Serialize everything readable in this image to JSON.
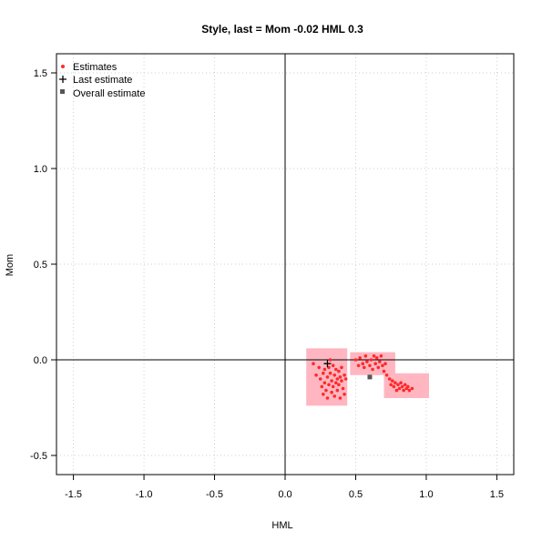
{
  "chart_data": {
    "type": "scatter",
    "title": "Style, last = Mom -0.02 HML 0.3",
    "xlabel": "HML",
    "ylabel": "Mom",
    "xlim": [
      -1.62,
      1.62
    ],
    "ylim": [
      -0.6,
      1.6
    ],
    "x_ticks": [
      -1.5,
      -1.0,
      -0.5,
      0.0,
      0.5,
      1.0,
      1.5
    ],
    "y_ticks": [
      -0.5,
      0.0,
      0.5,
      1.0,
      1.5
    ],
    "x_tick_labels": [
      "-1.5",
      "-1.0",
      "-0.5",
      "0.0",
      "0.5",
      "1.0",
      "1.5"
    ],
    "y_tick_labels": [
      "-0.5",
      "0.0",
      "0.5",
      "1.0",
      "1.5"
    ],
    "grid": true,
    "reference_lines": {
      "x": 0,
      "y": 0
    },
    "legend": {
      "position": "top-left",
      "items": [
        {
          "label": "Estimates",
          "marker": "dot",
          "color": "#ff2a2a"
        },
        {
          "label": "Last estimate",
          "marker": "plus",
          "color": "#000000"
        },
        {
          "label": "Overall estimate",
          "marker": "square",
          "color": "#555555"
        }
      ]
    },
    "colors": {
      "estimate": "#ff2a2a",
      "region": "#ffb6c1",
      "overall": "#555555",
      "last": "#000000"
    },
    "last_estimate": {
      "x": 0.3,
      "y": -0.02
    },
    "overall_estimate": {
      "x": 0.6,
      "y": -0.09
    },
    "regions": [
      [
        [
          0.15,
          0.06
        ],
        [
          0.44,
          0.06
        ],
        [
          0.44,
          -0.24
        ],
        [
          0.15,
          -0.24
        ]
      ],
      [
        [
          0.46,
          0.04
        ],
        [
          0.78,
          0.04
        ],
        [
          0.78,
          -0.08
        ],
        [
          0.46,
          -0.08
        ]
      ],
      [
        [
          0.7,
          -0.07
        ],
        [
          1.02,
          -0.07
        ],
        [
          1.02,
          -0.2
        ],
        [
          0.7,
          -0.2
        ]
      ]
    ],
    "estimates": [
      [
        0.2,
        -0.02
      ],
      [
        0.22,
        -0.08
      ],
      [
        0.24,
        -0.04
      ],
      [
        0.25,
        -0.1
      ],
      [
        0.26,
        -0.14
      ],
      [
        0.27,
        -0.07
      ],
      [
        0.27,
        -0.18
      ],
      [
        0.28,
        -0.05
      ],
      [
        0.28,
        -0.12
      ],
      [
        0.29,
        -0.16
      ],
      [
        0.3,
        -0.09
      ],
      [
        0.3,
        -0.2
      ],
      [
        0.31,
        -0.04
      ],
      [
        0.31,
        -0.13
      ],
      [
        0.32,
        -0.07
      ],
      [
        0.32,
        0.0
      ],
      [
        0.33,
        -0.11
      ],
      [
        0.33,
        -0.17
      ],
      [
        0.34,
        -0.03
      ],
      [
        0.34,
        -0.14
      ],
      [
        0.35,
        -0.08
      ],
      [
        0.35,
        -0.19
      ],
      [
        0.36,
        -0.05
      ],
      [
        0.36,
        -0.12
      ],
      [
        0.37,
        -0.1
      ],
      [
        0.37,
        -0.16
      ],
      [
        0.38,
        -0.06
      ],
      [
        0.38,
        -0.13
      ],
      [
        0.39,
        -0.09
      ],
      [
        0.39,
        -0.2
      ],
      [
        0.4,
        -0.04
      ],
      [
        0.4,
        -0.11
      ],
      [
        0.41,
        -0.15
      ],
      [
        0.42,
        -0.08
      ],
      [
        0.42,
        -0.18
      ],
      [
        0.43,
        -0.1
      ],
      [
        0.5,
        0.0
      ],
      [
        0.52,
        -0.03
      ],
      [
        0.53,
        0.01
      ],
      [
        0.55,
        -0.02
      ],
      [
        0.56,
        -0.04
      ],
      [
        0.57,
        0.02
      ],
      [
        0.58,
        -0.01
      ],
      [
        0.6,
        -0.03
      ],
      [
        0.61,
        0.0
      ],
      [
        0.62,
        -0.05
      ],
      [
        0.63,
        0.02
      ],
      [
        0.64,
        -0.02
      ],
      [
        0.65,
        0.01
      ],
      [
        0.66,
        -0.04
      ],
      [
        0.67,
        -0.01
      ],
      [
        0.68,
        0.02
      ],
      [
        0.69,
        -0.03
      ],
      [
        0.7,
        -0.06
      ],
      [
        0.71,
        -0.02
      ],
      [
        0.72,
        -0.08
      ],
      [
        0.74,
        -0.1
      ],
      [
        0.75,
        -0.13
      ],
      [
        0.76,
        -0.11
      ],
      [
        0.77,
        -0.14
      ],
      [
        0.78,
        -0.12
      ],
      [
        0.79,
        -0.16
      ],
      [
        0.8,
        -0.13
      ],
      [
        0.81,
        -0.15
      ],
      [
        0.82,
        -0.12
      ],
      [
        0.83,
        -0.14
      ],
      [
        0.84,
        -0.16
      ],
      [
        0.85,
        -0.13
      ],
      [
        0.86,
        -0.15
      ],
      [
        0.87,
        -0.14
      ],
      [
        0.88,
        -0.16
      ],
      [
        0.9,
        -0.15
      ]
    ]
  }
}
